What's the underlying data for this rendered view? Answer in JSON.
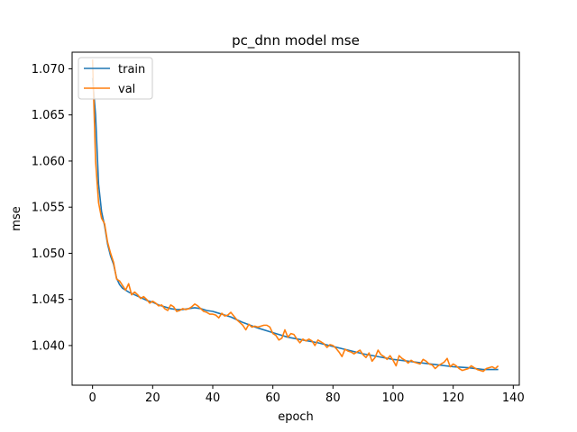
{
  "chart_data": {
    "type": "line",
    "title": "pc_dnn model mse",
    "xlabel": "epoch",
    "ylabel": "mse",
    "xlim": [
      -6.8,
      142
    ],
    "ylim": [
      1.0357,
      1.0718
    ],
    "xticks": [
      0,
      20,
      40,
      60,
      80,
      100,
      120,
      140
    ],
    "yticks": [
      1.04,
      1.045,
      1.05,
      1.055,
      1.06,
      1.065,
      1.07
    ],
    "ytick_labels": [
      "1.040",
      "1.045",
      "1.050",
      "1.055",
      "1.060",
      "1.065",
      "1.070"
    ],
    "legend_position": "upper left",
    "grid": false,
    "series": [
      {
        "name": "train",
        "color": "#1f77b4",
        "x": [
          0,
          1,
          2,
          3,
          4,
          5,
          6,
          7,
          8,
          9,
          10,
          12,
          14,
          16,
          18,
          20,
          22,
          24,
          26,
          28,
          30,
          32,
          34,
          36,
          38,
          40,
          42,
          44,
          46,
          48,
          50,
          55,
          60,
          65,
          70,
          75,
          80,
          85,
          90,
          95,
          100,
          105,
          110,
          115,
          120,
          125,
          130,
          135
        ],
        "values": [
          1.069,
          1.065,
          1.0575,
          1.0545,
          1.053,
          1.051,
          1.0497,
          1.0488,
          1.0473,
          1.0466,
          1.0462,
          1.0458,
          1.0455,
          1.0452,
          1.0449,
          1.0447,
          1.0444,
          1.0442,
          1.044,
          1.0439,
          1.0439,
          1.044,
          1.0441,
          1.044,
          1.0438,
          1.0437,
          1.0435,
          1.0433,
          1.0431,
          1.0428,
          1.0425,
          1.0419,
          1.0414,
          1.0409,
          1.0406,
          1.0403,
          1.0399,
          1.0395,
          1.0391,
          1.0388,
          1.0385,
          1.0383,
          1.0381,
          1.0379,
          1.0377,
          1.0376,
          1.0374,
          1.0374
        ]
      },
      {
        "name": "val",
        "color": "#ff7f0e",
        "x": [
          0,
          1,
          2,
          3,
          4,
          5,
          6,
          7,
          8,
          9,
          10,
          11,
          12,
          13,
          14,
          15,
          16,
          17,
          18,
          19,
          20,
          21,
          22,
          23,
          24,
          25,
          26,
          27,
          28,
          29,
          30,
          31,
          32,
          33,
          34,
          35,
          36,
          37,
          38,
          39,
          40,
          41,
          42,
          43,
          44,
          45,
          46,
          47,
          48,
          49,
          50,
          51,
          52,
          53,
          54,
          55,
          56,
          57,
          58,
          59,
          60,
          61,
          62,
          63,
          64,
          65,
          66,
          67,
          68,
          69,
          70,
          71,
          72,
          73,
          74,
          75,
          76,
          77,
          78,
          79,
          80,
          81,
          82,
          83,
          84,
          85,
          86,
          87,
          88,
          89,
          90,
          91,
          92,
          93,
          94,
          95,
          96,
          97,
          98,
          99,
          100,
          101,
          102,
          103,
          104,
          105,
          106,
          107,
          108,
          109,
          110,
          111,
          112,
          113,
          114,
          115,
          116,
          117,
          118,
          119,
          120,
          121,
          122,
          123,
          124,
          125,
          126,
          127,
          128,
          129,
          130,
          131,
          132,
          133,
          134,
          135
        ],
        "values": [
          1.071,
          1.06,
          1.0555,
          1.0538,
          1.0532,
          1.0512,
          1.05,
          1.049,
          1.0472,
          1.047,
          1.0465,
          1.046,
          1.0467,
          1.0455,
          1.0458,
          1.0455,
          1.0451,
          1.0453,
          1.045,
          1.0446,
          1.0448,
          1.0446,
          1.0443,
          1.0444,
          1.044,
          1.0438,
          1.0444,
          1.0442,
          1.0437,
          1.0438,
          1.044,
          1.0439,
          1.044,
          1.0442,
          1.0445,
          1.0443,
          1.044,
          1.0437,
          1.0436,
          1.0434,
          1.0434,
          1.0433,
          1.043,
          1.0435,
          1.0432,
          1.0433,
          1.0436,
          1.0432,
          1.0428,
          1.0425,
          1.0422,
          1.0417,
          1.0423,
          1.042,
          1.0421,
          1.042,
          1.0421,
          1.0422,
          1.0422,
          1.042,
          1.0413,
          1.0411,
          1.0406,
          1.0408,
          1.0417,
          1.0409,
          1.0413,
          1.0412,
          1.0407,
          1.0403,
          1.0407,
          1.0405,
          1.0407,
          1.0405,
          1.04,
          1.0406,
          1.0404,
          1.0402,
          1.0398,
          1.0401,
          1.04,
          1.0397,
          1.0393,
          1.0388,
          1.0396,
          1.0394,
          1.0393,
          1.0391,
          1.0393,
          1.0395,
          1.039,
          1.0387,
          1.0392,
          1.0383,
          1.0387,
          1.0395,
          1.039,
          1.0388,
          1.0385,
          1.0389,
          1.0384,
          1.0378,
          1.0389,
          1.0386,
          1.0384,
          1.0381,
          1.0384,
          1.0382,
          1.0381,
          1.038,
          1.0385,
          1.0383,
          1.038,
          1.0379,
          1.0375,
          1.0378,
          1.038,
          1.0382,
          1.0386,
          1.0377,
          1.038,
          1.0378,
          1.0375,
          1.0373,
          1.0374,
          1.0375,
          1.0378,
          1.0376,
          1.0374,
          1.0373,
          1.0372,
          1.0375,
          1.0376,
          1.0377,
          1.0375,
          1.0378
        ]
      }
    ]
  }
}
